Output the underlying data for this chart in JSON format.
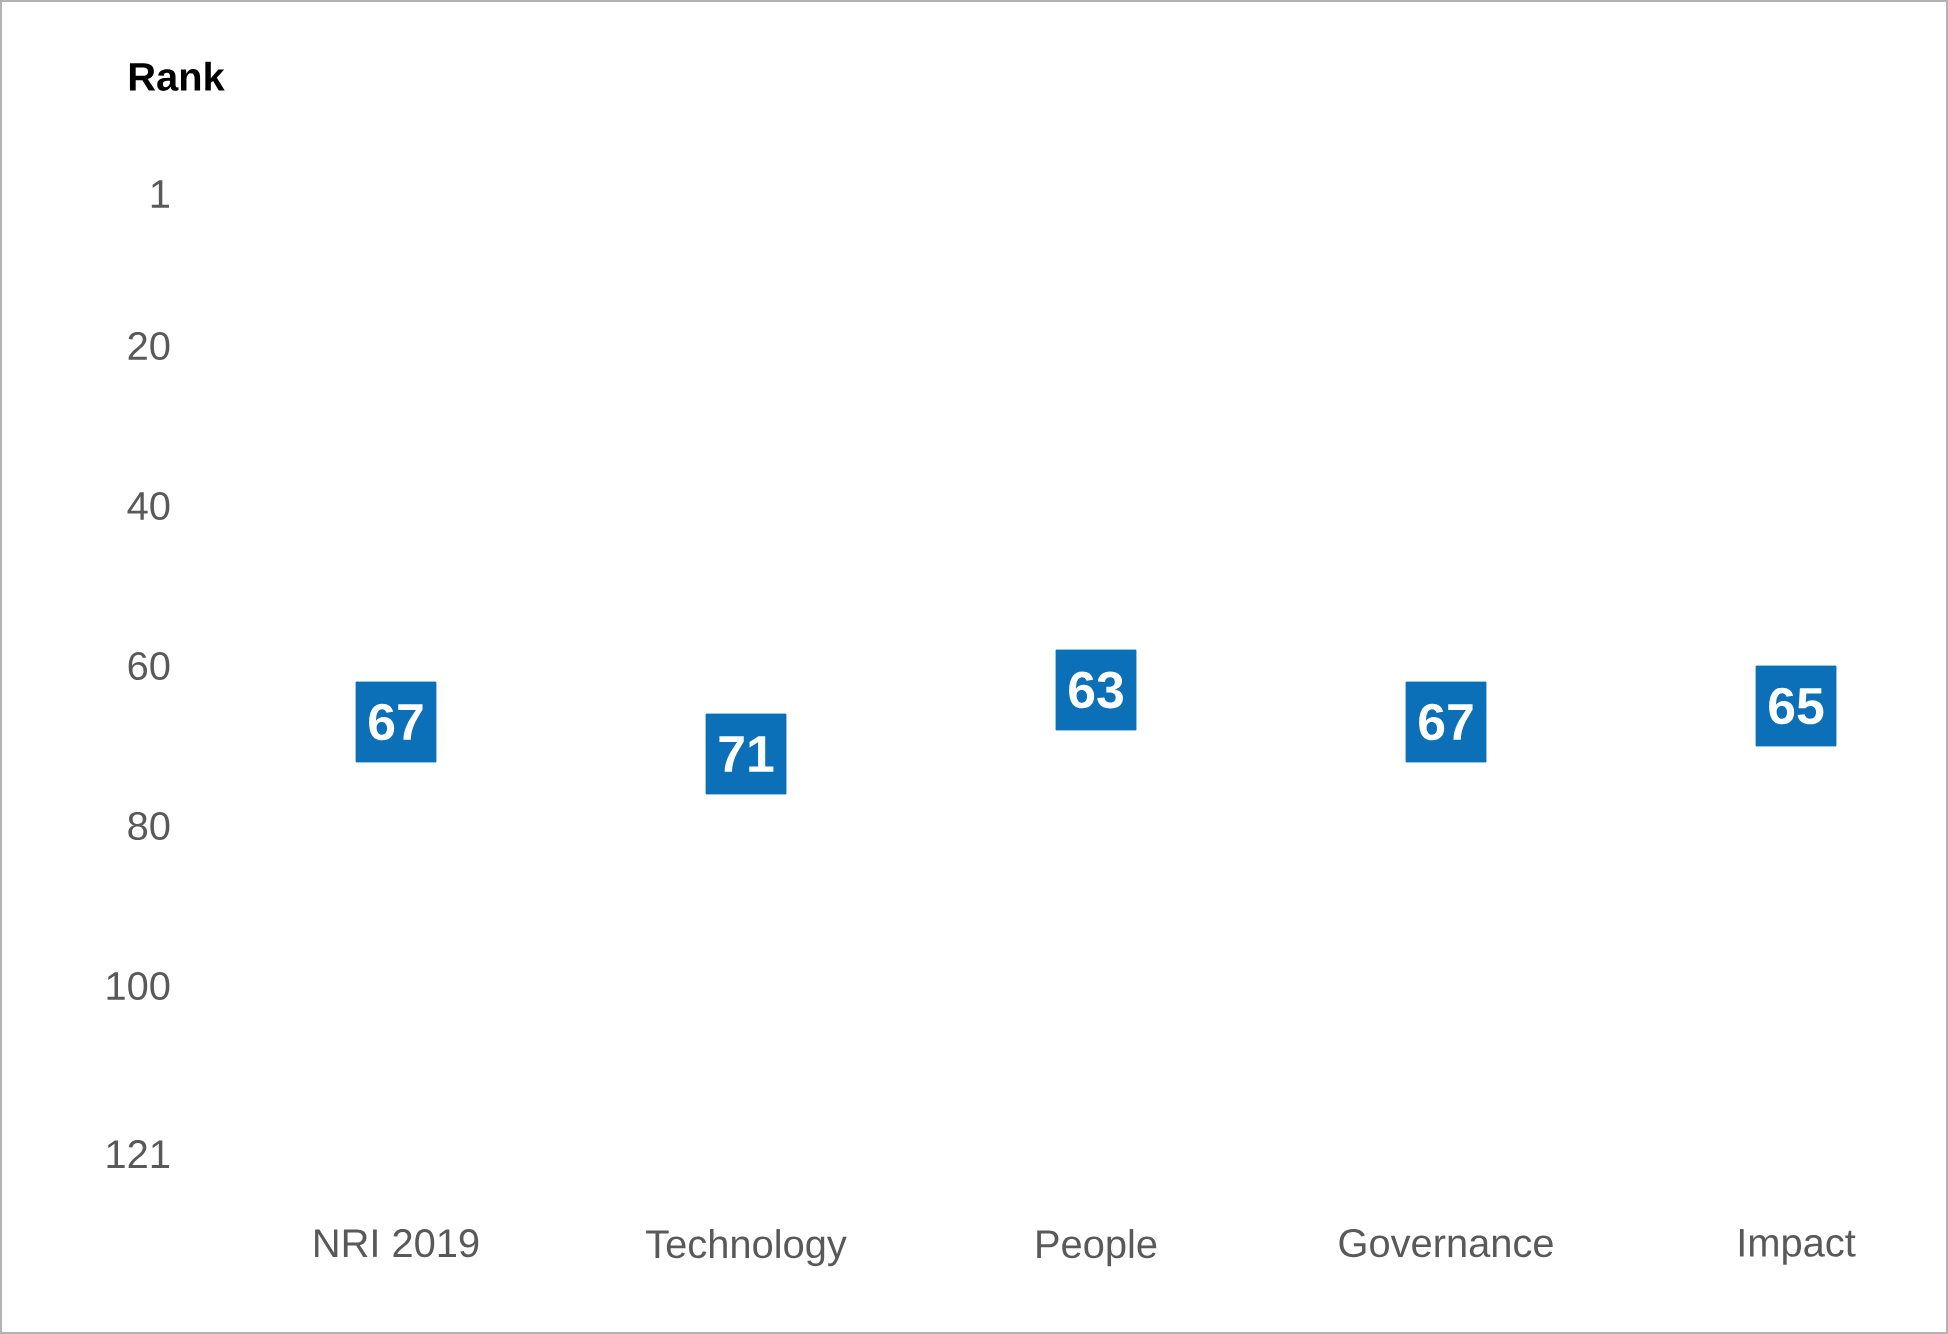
{
  "chart_data": {
    "type": "scatter",
    "ylabel": "Rank",
    "categories": [
      "NRI 2019",
      "Technology",
      "People",
      "Governance",
      "Impact"
    ],
    "values": [
      67,
      71,
      63,
      67,
      65
    ],
    "color": "#0b70b8",
    "ylim": [
      121,
      1
    ],
    "yticks": [
      1,
      20,
      40,
      60,
      80,
      100,
      121
    ],
    "data_labels": true,
    "marker": "square"
  }
}
